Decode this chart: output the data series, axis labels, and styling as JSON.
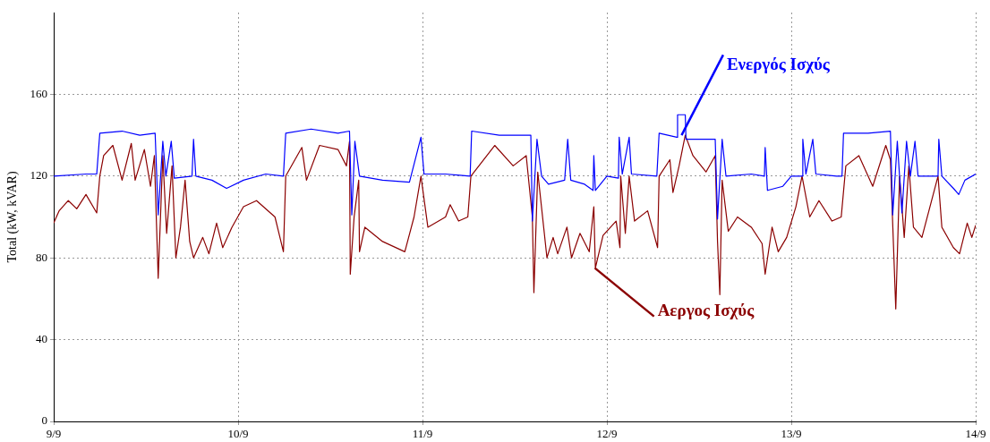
{
  "chart_data": {
    "type": "line",
    "ylabel": "Total (kW, kVAR)",
    "x": [
      "--09-09T00:00",
      "--09-09T04:12",
      "--09-09T05:36",
      "--09-09T06:00",
      "--09-09T08:54",
      "--09-09T11:12",
      "--09-09T13:12",
      "--09-09T13:36",
      "--09-09T14:12",
      "--09-09T14:36",
      "--09-09T15:18",
      "--09-09T15:42",
      "--09-09T18:00",
      "--09-09T18:12",
      "--09-09T18:30",
      "--09-09T20:36",
      "--09-09T22:30",
      "--09-10T00:42",
      "--09-10T03:36",
      "--09-10T05:54",
      "--09-10T06:12",
      "--09-10T09:30",
      "--09-10T13:00",
      "--09-10T14:30",
      "--09-10T14:48",
      "--09-10T15:12",
      "--09-10T15:48",
      "--09-10T18:48",
      "--09-10T22:18",
      "--09-10T23:48",
      "--09-11T00:12",
      "--09-11T03:00",
      "--09-11T06:12",
      "--09-11T06:24",
      "--09-11T10:00",
      "--09-11T14:06",
      "--09-11T14:18",
      "--09-11T14:54",
      "--09-11T15:30",
      "--09-11T16:24",
      "--09-11T18:30",
      "--09-11T18:54",
      "--09-11T19:18",
      "--09-11T21:06",
      "--09-11T22:12",
      "--09-11T22:18",
      "--09-11T22:30",
      "--09-12T00:00",
      "--09-12T01:30",
      "--09-12T01:36",
      "--09-12T02:00",
      "--09-12T02:54",
      "--09-12T03:12",
      "--09-12T06:30",
      "--09-12T06:48",
      "--09-12T09:06",
      "--09-12T09:12",
      "--09-12T10:12",
      "--09-12T10:18",
      "--09-12T14:06",
      "--09-12T14:24",
      "--09-12T15:00",
      "--09-12T15:30",
      "--09-12T18:48",
      "--09-12T20:30",
      "--09-12T20:36",
      "--09-12T20:54",
      "--09-12T22:54",
      "--09-13T00:00",
      "--09-13T01:24",
      "--09-13T01:30",
      "--09-13T01:54",
      "--09-13T02:48",
      "--09-13T03:12",
      "--09-13T05:54",
      "--09-13T06:36",
      "--09-13T06:48",
      "--09-13T10:00",
      "--09-13T12:54",
      "--09-13T13:12",
      "--09-13T13:48",
      "--09-13T14:24",
      "--09-13T15:00",
      "--09-13T15:30",
      "--09-13T16:06",
      "--09-13T16:30",
      "--09-13T19:06",
      "--09-13T19:12",
      "--09-13T19:36",
      "--09-13T21:06",
      "--09-13T21:48",
      "--09-13T22:36",
      "--09-14T00:00"
    ],
    "series": [
      {
        "name": "Ενεργός Ισχύς",
        "color": "#0000ff",
        "values": [
          120,
          121,
          121,
          141,
          142,
          140,
          141,
          101,
          137,
          120,
          137,
          119,
          120,
          138,
          120,
          118,
          114,
          118,
          121,
          120,
          141,
          143,
          141,
          142,
          101,
          137,
          120,
          118,
          117,
          139,
          121,
          121,
          120,
          142,
          140,
          140,
          98,
          138,
          120,
          116,
          118,
          138,
          118,
          116,
          113,
          130,
          113,
          120,
          119,
          139,
          121,
          139,
          121,
          120,
          141,
          139,
          150,
          150,
          138,
          138,
          99,
          138,
          120,
          121,
          120,
          134,
          113,
          115,
          120,
          120,
          138,
          121,
          138,
          121,
          120,
          120,
          141,
          141,
          142,
          101,
          137,
          102,
          137,
          120,
          137,
          120,
          120,
          138,
          120,
          114,
          111,
          118,
          121
        ]
      },
      {
        "name": "Αεργος Ισχύς",
        "color": "#8b0000",
        "x": [
          "--09-09T00:00",
          "--09-09T00:42",
          "--09-09T01:54",
          "--09-09T03:00",
          "--09-09T04:12",
          "--09-09T05:36",
          "--09-09T06:00",
          "--09-09T06:30",
          "--09-09T07:42",
          "--09-09T08:54",
          "--09-09T10:06",
          "--09-09T10:36",
          "--09-09T11:48",
          "--09-09T12:36",
          "--09-09T13:06",
          "--09-09T13:36",
          "--09-09T14:12",
          "--09-09T14:42",
          "--09-09T15:24",
          "--09-09T15:54",
          "--09-09T16:30",
          "--09-09T17:06",
          "--09-09T17:42",
          "--09-09T18:12",
          "--09-09T19:24",
          "--09-09T20:12",
          "--09-09T21:12",
          "--09-09T22:00",
          "--09-09T23:12",
          "--09-10T00:42",
          "--09-10T02:24",
          "--09-10T04:48",
          "--09-10T05:54",
          "--09-10T06:12",
          "--09-10T08:18",
          "--09-10T08:54",
          "--09-10T10:36",
          "--09-10T13:00",
          "--09-10T14:06",
          "--09-10T14:30",
          "--09-10T14:36",
          "--09-10T15:06",
          "--09-10T15:42",
          "--09-10T15:48",
          "--09-10T16:30",
          "--09-10T18:48",
          "--09-10T21:42",
          "--09-10T22:54",
          "--09-10T23:48",
          "--09-11T00:42",
          "--09-11T03:00",
          "--09-11T03:36",
          "--09-11T04:42",
          "--09-11T05:54",
          "--09-11T06:18",
          "--09-11T09:24",
          "--09-11T11:48",
          "--09-11T13:30",
          "--09-11T14:18",
          "--09-11T14:30",
          "--09-11T15:00",
          "--09-11T16:12",
          "--09-11T17:00",
          "--09-11T17:36",
          "--09-11T18:48",
          "--09-11T19:24",
          "--09-11T20:30",
          "--09-11T21:42",
          "--09-11T22:18",
          "--09-11T22:30",
          "--09-11T23:30",
          "--09-12T01:12",
          "--09-12T01:42",
          "--09-12T01:48",
          "--09-12T02:24",
          "--09-12T02:54",
          "--09-12T03:36",
          "--09-12T05:18",
          "--09-12T06:36",
          "--09-12T06:48",
          "--09-12T08:12",
          "--09-12T08:36",
          "--09-12T09:24",
          "--09-12T10:12",
          "--09-12T11:12",
          "--09-12T12:54",
          "--09-12T14:06",
          "--09-12T14:24",
          "--09-12T14:42",
          "--09-12T15:00",
          "--09-12T15:48",
          "--09-12T17:00",
          "--09-12T18:48",
          "--09-12T20:12",
          "--09-12T20:36",
          "--09-12T21:30",
          "--09-12T22:18",
          "--09-12T23:24",
          "--09-13T00:36",
          "--09-13T01:24",
          "--09-13T02:24",
          "--09-13T03:36",
          "--09-13T05:18",
          "--09-13T06:30",
          "--09-13T07:06",
          "--09-13T08:48",
          "--09-13T10:36",
          "--09-13T12:18",
          "--09-13T12:54",
          "--09-13T13:36",
          "--09-13T14:06",
          "--09-13T14:42",
          "--09-13T15:18",
          "--09-13T15:54",
          "--09-13T17:00",
          "--09-13T19:06",
          "--09-13T19:36",
          "--09-13T21:06",
          "--09-13T21:54",
          "--09-13T22:54",
          "--09-13T23:30",
          "--09-14T00:00"
        ],
        "values": [
          97,
          103,
          108,
          104,
          111,
          102,
          120,
          130,
          135,
          118,
          136,
          118,
          133,
          115,
          130,
          70,
          130,
          92,
          125,
          80,
          95,
          118,
          88,
          80,
          90,
          82,
          97,
          85,
          95,
          105,
          108,
          100,
          83,
          120,
          134,
          118,
          135,
          133,
          125,
          137,
          72,
          100,
          118,
          83,
          95,
          88,
          83,
          100,
          120,
          95,
          100,
          106,
          98,
          100,
          120,
          135,
          125,
          130,
          100,
          63,
          122,
          80,
          90,
          82,
          95,
          80,
          92,
          83,
          105,
          75,
          91,
          98,
          85,
          120,
          92,
          120,
          98,
          103,
          85,
          120,
          128,
          112,
          125,
          140,
          130,
          122,
          130,
          88,
          62,
          118,
          93,
          100,
          95,
          87,
          72,
          95,
          83,
          90,
          105,
          120,
          100,
          108,
          98,
          100,
          125,
          130,
          115,
          135,
          128,
          55,
          120,
          90,
          125,
          95,
          90,
          120,
          95,
          85,
          82,
          97,
          90,
          96
        ]
      }
    ],
    "xlim": [
      "--09-09",
      "--09-14"
    ],
    "xticks": [
      {
        "value": "--09-09",
        "label": "9/9"
      },
      {
        "value": "--09-10",
        "label": "10/9"
      },
      {
        "value": "--09-11",
        "label": "11/9"
      },
      {
        "value": "--09-12",
        "label": "12/9"
      },
      {
        "value": "--09-13",
        "label": "13/9"
      },
      {
        "value": "--09-14",
        "label": "14/9"
      }
    ],
    "ylim": [
      0,
      200
    ],
    "yticks": [
      0,
      40,
      80,
      120,
      160
    ],
    "grid": true,
    "legend": false,
    "marker": "none",
    "line_style": "solid"
  }
}
